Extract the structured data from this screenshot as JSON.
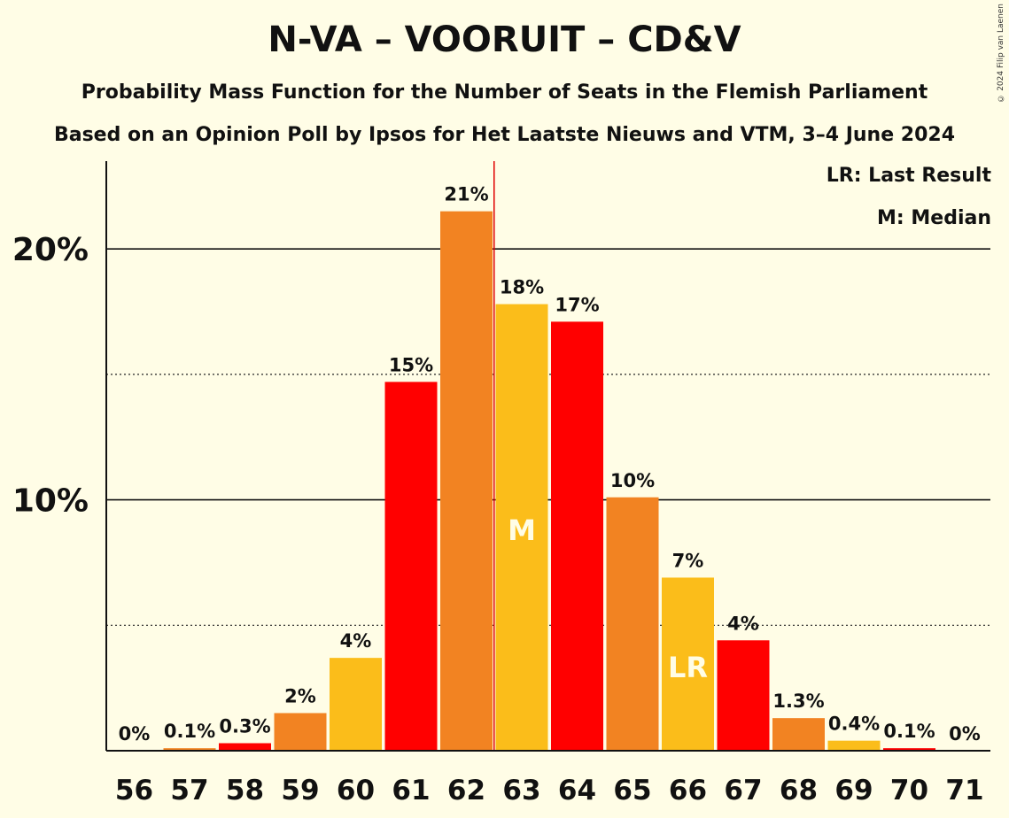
{
  "header": {
    "title": "N-VA – VOORUIT – CD&V",
    "subtitle1": "Probability Mass Function for the Number of Seats in the Flemish Parliament",
    "subtitle2": "Based on an Opinion Poll by Ipsos for Het Laatste Nieuws and VTM, 3–4 June 2024",
    "copyright": "© 2024 Filip van Laenen"
  },
  "legend": {
    "last_result": "LR: Last Result",
    "median": "M: Median"
  },
  "colors": {
    "red": "#FF0000",
    "orange": "#F28322",
    "yellow": "#FBBD1A",
    "background": "#FFFDE6",
    "median_line": "#E00000"
  },
  "chart_data": {
    "type": "bar",
    "categories": [
      "56",
      "57",
      "58",
      "59",
      "60",
      "61",
      "62",
      "63",
      "64",
      "65",
      "66",
      "67",
      "68",
      "69",
      "70",
      "71"
    ],
    "values": [
      0,
      0.1,
      0.3,
      1.5,
      3.7,
      14.7,
      21.5,
      17.8,
      17.1,
      10.1,
      6.9,
      4.4,
      1.3,
      0.4,
      0.1,
      0
    ],
    "labels": [
      "0%",
      "0.1%",
      "0.3%",
      "2%",
      "4%",
      "15%",
      "21%",
      "18%",
      "17%",
      "10%",
      "7%",
      "4%",
      "1.3%",
      "0.4%",
      "0.1%",
      "0%"
    ],
    "bar_colors": [
      "red",
      "orange",
      "red",
      "orange",
      "yellow",
      "red",
      "orange",
      "yellow",
      "red",
      "orange",
      "yellow",
      "red",
      "orange",
      "yellow",
      "red",
      "orange"
    ],
    "ylim": [
      0,
      23.5
    ],
    "y_major_ticks": [
      10,
      20
    ],
    "y_tick_labels": [
      "10%",
      "20%"
    ],
    "y_minor_gridlines": [
      5,
      15
    ],
    "median_category": "63",
    "median_marker": "M",
    "last_result_category": "66",
    "last_result_marker": "LR",
    "majority_line_between": [
      "62",
      "63"
    ]
  }
}
